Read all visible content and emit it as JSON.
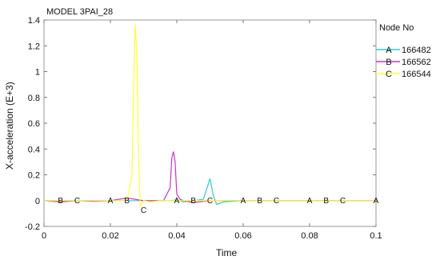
{
  "chart_data": {
    "type": "line",
    "title": "MODEL 3PAI_28",
    "xlabel": "Time",
    "ylabel": "X-acceleration (E+3)",
    "xlim": [
      0,
      0.1
    ],
    "ylim": [
      -0.2,
      1.4
    ],
    "xticks": [
      0,
      0.02,
      0.04,
      0.06,
      0.08,
      0.1
    ],
    "xtick_labels": [
      "0",
      "0.02",
      "0.04",
      "0.06",
      "0.08",
      "0.1"
    ],
    "yticks": [
      -0.2,
      0,
      0.2,
      0.4,
      0.6,
      0.8,
      1,
      1.2,
      1.4
    ],
    "ytick_labels": [
      "-0.2",
      "0",
      "0.2",
      "0.4",
      "0.6",
      "0.8",
      "1",
      "1.2",
      "1.4"
    ],
    "grid": false,
    "legend": {
      "title": "Node No",
      "position": "right"
    },
    "series": [
      {
        "name": "166482",
        "marker": "A",
        "color": "#33cccc",
        "x": [
          0,
          0.01,
          0.02,
          0.027,
          0.029,
          0.038,
          0.04,
          0.042,
          0.045,
          0.048,
          0.0495,
          0.05,
          0.051,
          0.052,
          0.054,
          0.06,
          0.08,
          0.1
        ],
        "y": [
          0,
          0,
          0,
          0,
          0,
          0,
          0.005,
          -0.01,
          0,
          0.01,
          0.13,
          0.17,
          0.04,
          -0.03,
          -0.01,
          0,
          0,
          0
        ],
        "marker_x": [
          0.02,
          0.04,
          0.06,
          0.08,
          0.1
        ]
      },
      {
        "name": "166562",
        "marker": "B",
        "color": "#cc33cc",
        "x": [
          0,
          0.005,
          0.01,
          0.015,
          0.02,
          0.025,
          0.03,
          0.036,
          0.038,
          0.0385,
          0.039,
          0.0395,
          0.04,
          0.041,
          0.042,
          0.045,
          0.05,
          0.06,
          0.1
        ],
        "y": [
          0,
          -0.01,
          0,
          -0.005,
          0,
          0.02,
          0,
          0,
          0.1,
          0.33,
          0.38,
          0.3,
          0.05,
          0.01,
          0,
          -0.015,
          0,
          0,
          0
        ],
        "marker_x": [
          0.005,
          0.025,
          0.045,
          0.065,
          0.085
        ]
      },
      {
        "name": "166544",
        "marker": "C",
        "color": "#ffff33",
        "x": [
          0,
          0.025,
          0.0265,
          0.027,
          0.0275,
          0.028,
          0.0285,
          0.029,
          0.03,
          0.032,
          0.035,
          0.04,
          0.06,
          0.1
        ],
        "y": [
          0,
          0,
          0.2,
          0.9,
          1.37,
          1.1,
          0.3,
          -0.04,
          0,
          -0.01,
          0,
          0,
          0,
          0
        ],
        "marker_x": [
          0.01,
          0.03,
          0.05,
          0.07,
          0.09
        ]
      }
    ]
  }
}
